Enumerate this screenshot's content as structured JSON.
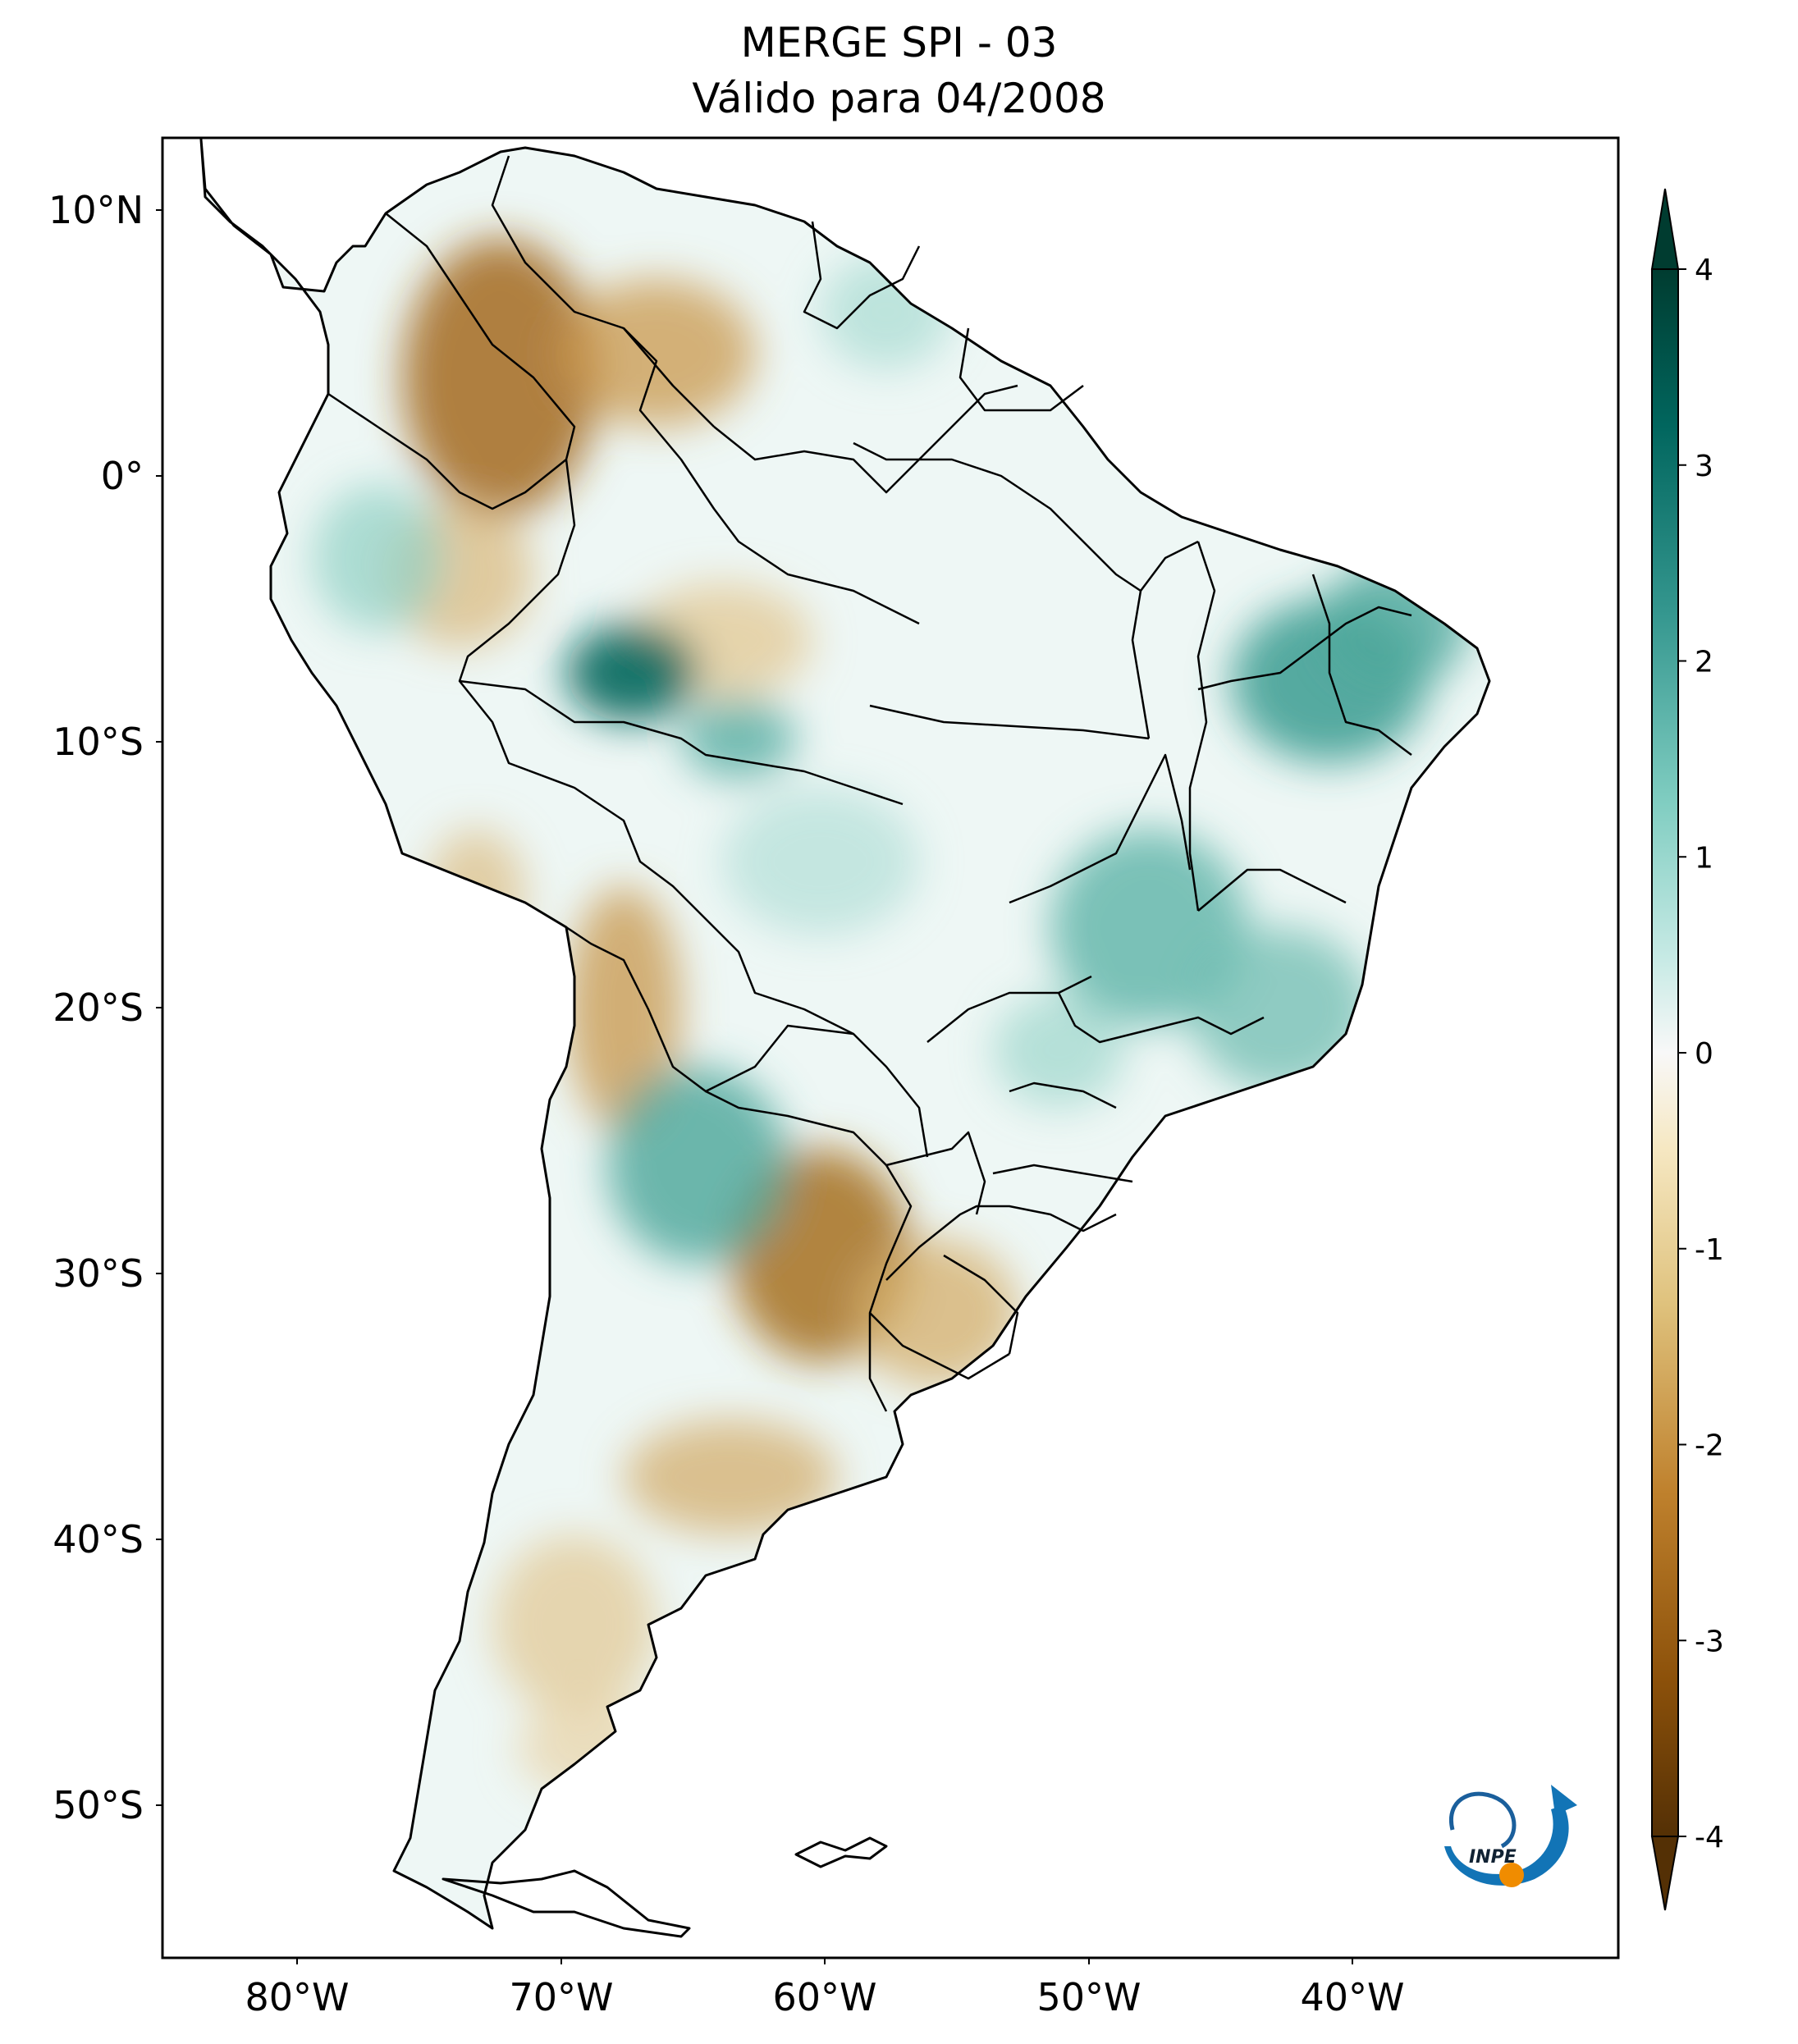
{
  "title": {
    "line1": "MERGE   SPI - 03",
    "line2": "Válido para 04/2008"
  },
  "map": {
    "lat_ticks": [
      "10°N",
      "0°",
      "10°S",
      "20°S",
      "30°S",
      "40°S",
      "50°S"
    ],
    "lon_ticks": [
      "80°W",
      "70°W",
      "60°W",
      "50°W",
      "40°W"
    ]
  },
  "colorbar": {
    "ticks": [
      "4",
      "3",
      "2",
      "1",
      "0",
      "-1",
      "-2",
      "-3",
      "-4"
    ],
    "colors": [
      "#003c30",
      "#01665e",
      "#35978f",
      "#80cdc1",
      "#c7eae5",
      "#f5f5f5",
      "#f6e8c3",
      "#dfc27d",
      "#bf812d",
      "#8c510a",
      "#543005"
    ]
  },
  "logo": {
    "text": "INPE"
  }
}
